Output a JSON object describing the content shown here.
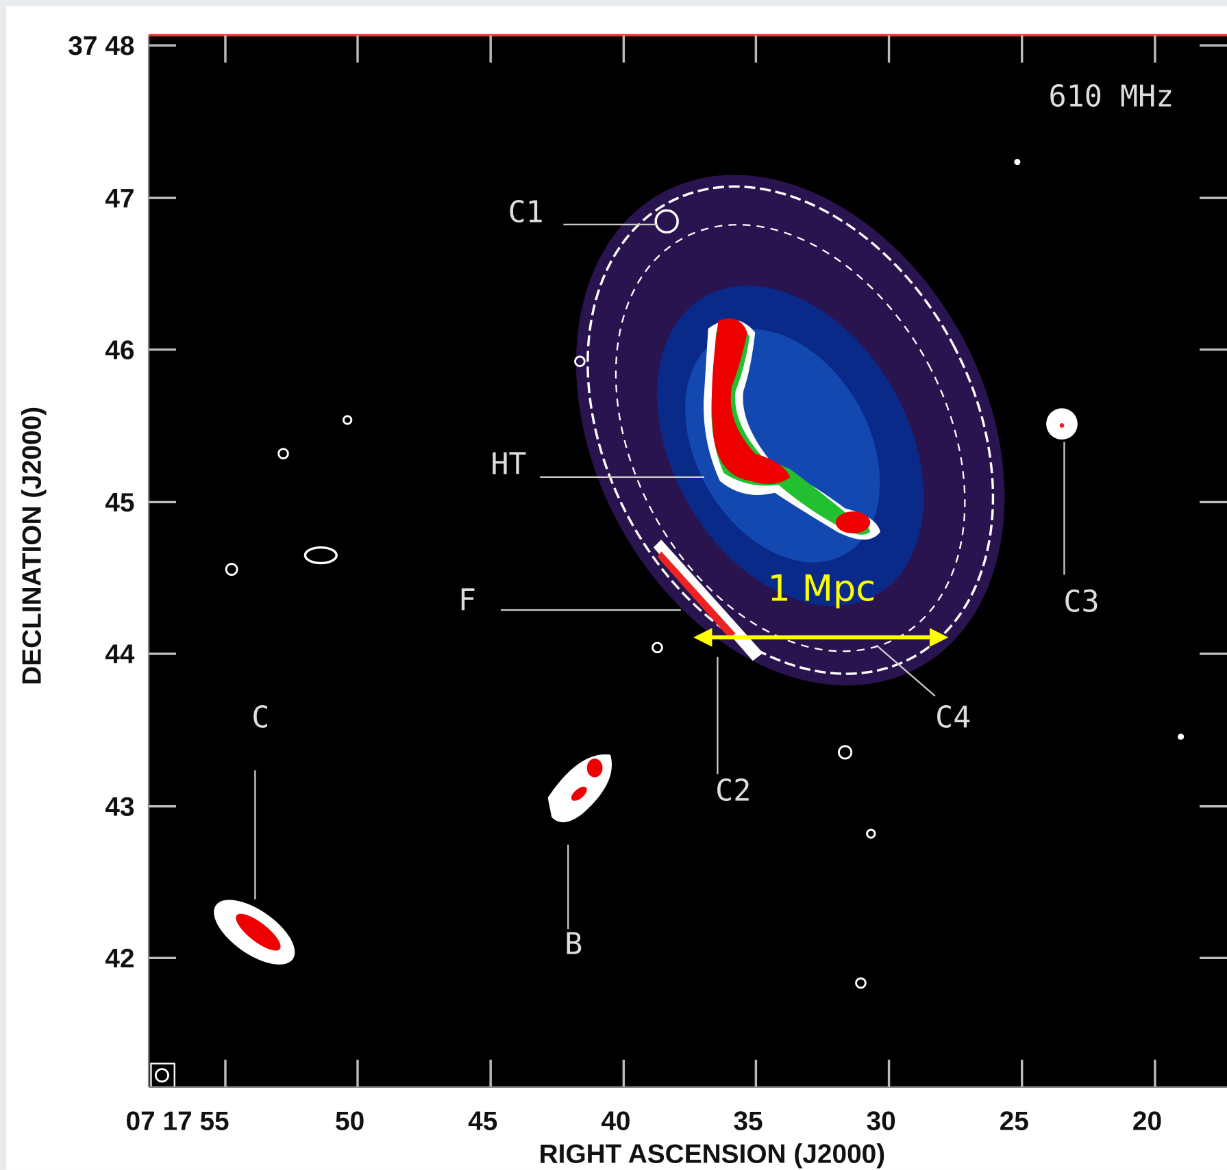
{
  "plot": {
    "frequency": "610 MHz",
    "scale_bar": "1 Mpc",
    "x_axis": {
      "title": "RIGHT ASCENSION (J2000)",
      "tick_labels": [
        "07 17 55",
        "50",
        "45",
        "40",
        "35",
        "30",
        "25",
        "20"
      ]
    },
    "y_axis": {
      "title": "DECLINATION (J2000)",
      "tick_labels": [
        "37 48",
        "47",
        "46",
        "45",
        "44",
        "43",
        "42"
      ]
    },
    "sources": [
      "C1",
      "HT",
      "F",
      "C",
      "B",
      "C2",
      "C3",
      "C4"
    ]
  }
}
